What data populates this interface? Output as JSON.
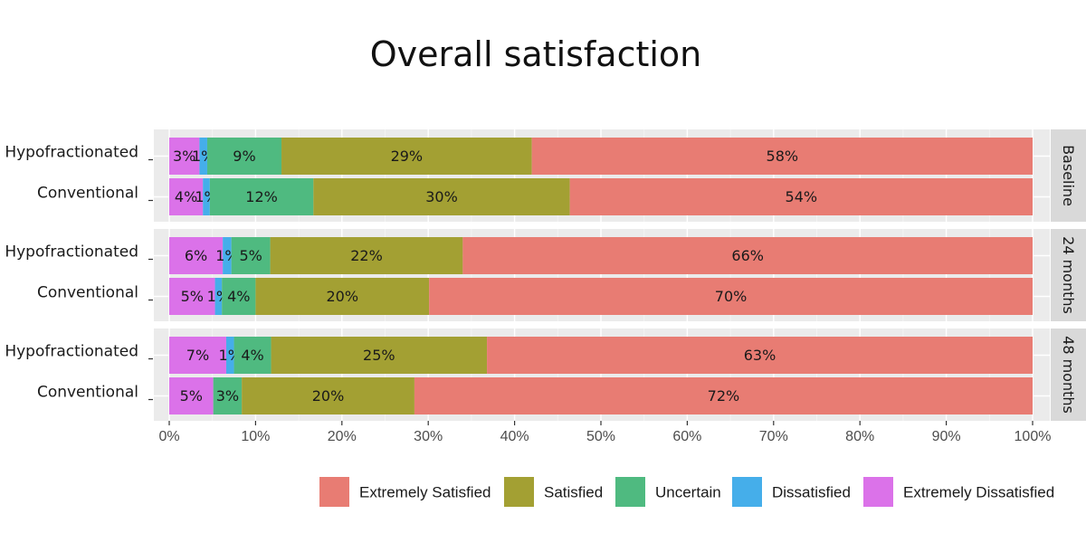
{
  "chart_data": {
    "type": "bar",
    "orientation": "horizontal-stacked",
    "title": "Overall satisfaction",
    "xlabel": "",
    "ylabel": "",
    "xlim": [
      0,
      100
    ],
    "x_ticks": [
      "0%",
      "10%",
      "20%",
      "30%",
      "40%",
      "50%",
      "60%",
      "70%",
      "80%",
      "90%",
      "100%"
    ],
    "grid": true,
    "legend_position": "bottom",
    "categories": [
      "Hypofractionated",
      "Conventional"
    ],
    "colors": {
      "Extremely Dissatisfied": "#db72e9",
      "Dissatisfied": "#45aeea",
      "Uncertain": "#4fba80",
      "Satisfied": "#a3a033",
      "Extremely Satisfied": "#e87c73"
    },
    "legend": [
      "Extremely Satisfied",
      "Satisfied",
      "Uncertain",
      "Dissatisfied",
      "Extremely Dissatisfied"
    ],
    "stack_order": [
      "Extremely Dissatisfied",
      "Dissatisfied",
      "Uncertain",
      "Satisfied",
      "Extremely Satisfied"
    ],
    "panels": [
      {
        "name": "Baseline",
        "bars": [
          {
            "category": "Hypofractionated",
            "values": [
              3.5,
              0.9,
              8.6,
              29,
              58
            ],
            "labels": [
              "3%",
              "1%",
              "9%",
              "29%",
              "58%"
            ]
          },
          {
            "category": "Conventional",
            "values": [
              3.9,
              0.8,
              12,
              29.7,
              53.6
            ],
            "labels": [
              "4%",
              "1%",
              "12%",
              "30%",
              "54%"
            ]
          }
        ]
      },
      {
        "name": "24 months",
        "bars": [
          {
            "category": "Hypofractionated",
            "values": [
              6.2,
              1,
              4.5,
              22.3,
              66
            ],
            "labels": [
              "6%",
              "1%",
              "5%",
              "22%",
              "66%"
            ]
          },
          {
            "category": "Conventional",
            "values": [
              5.3,
              0.8,
              3.9,
              20.1,
              69.9
            ],
            "labels": [
              "5%",
              "1%",
              "4%",
              "20%",
              "70%"
            ]
          }
        ]
      },
      {
        "name": "48 months",
        "bars": [
          {
            "category": "Hypofractionated",
            "values": [
              6.6,
              0.9,
              4.3,
              25,
              63.2
            ],
            "labels": [
              "7%",
              "1%",
              "4%",
              "25%",
              "63%"
            ]
          },
          {
            "category": "Conventional",
            "values": [
              5.1,
              0,
              3.3,
              20,
              71.6
            ],
            "labels": [
              "5%",
              "",
              "3%",
              "20%",
              "72%"
            ]
          }
        ]
      }
    ]
  }
}
